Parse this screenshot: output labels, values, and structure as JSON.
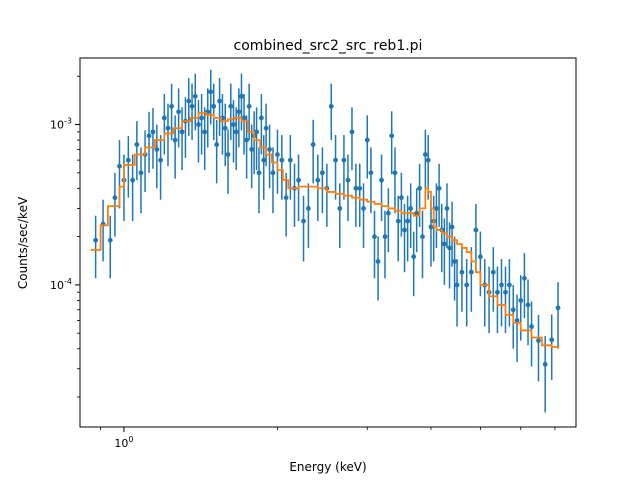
{
  "chart_data": {
    "type": "scatter",
    "title": "combined_src2_src_reb1.pi",
    "xlabel": "Energy (keV)",
    "ylabel": "Counts/sec/keV",
    "xscale": "log",
    "yscale": "log",
    "xlim": [
      0.82,
      7.7
    ],
    "ylim": [
      1.3e-05,
      0.0026
    ],
    "x_ticks": [
      {
        "value": 1,
        "label": "10^0"
      }
    ],
    "y_ticks": [
      {
        "value": 0.001,
        "label": "10^-3"
      },
      {
        "value": 0.0001,
        "label": "10^-4"
      }
    ],
    "grid": false,
    "colors": {
      "data": "#1f77b4",
      "model": "#ff7f0e"
    },
    "data": {
      "name": "",
      "x": [
        0.88,
        0.91,
        0.94,
        0.96,
        0.98,
        1.0,
        1.02,
        1.04,
        1.06,
        1.08,
        1.1,
        1.12,
        1.14,
        1.16,
        1.18,
        1.2,
        1.22,
        1.24,
        1.26,
        1.28,
        1.3,
        1.32,
        1.34,
        1.36,
        1.38,
        1.4,
        1.42,
        1.44,
        1.46,
        1.48,
        1.5,
        1.52,
        1.54,
        1.56,
        1.58,
        1.6,
        1.62,
        1.64,
        1.66,
        1.68,
        1.7,
        1.72,
        1.74,
        1.76,
        1.78,
        1.8,
        1.82,
        1.84,
        1.86,
        1.88,
        1.9,
        1.93,
        1.96,
        2.0,
        2.04,
        2.08,
        2.12,
        2.16,
        2.2,
        2.25,
        2.3,
        2.35,
        2.4,
        2.45,
        2.5,
        2.55,
        2.6,
        2.65,
        2.7,
        2.75,
        2.8,
        2.85,
        2.9,
        2.95,
        3.0,
        3.05,
        3.1,
        3.15,
        3.2,
        3.25,
        3.3,
        3.35,
        3.4,
        3.45,
        3.5,
        3.55,
        3.6,
        3.65,
        3.7,
        3.75,
        3.8,
        3.85,
        3.9,
        3.95,
        4.0,
        4.05,
        4.1,
        4.15,
        4.2,
        4.25,
        4.3,
        4.35,
        4.4,
        4.45,
        4.5,
        4.6,
        4.7,
        4.8,
        4.9,
        5.0,
        5.1,
        5.2,
        5.3,
        5.4,
        5.5,
        5.6,
        5.7,
        5.8,
        5.9,
        6.0,
        6.1,
        6.2,
        6.3,
        6.5,
        6.7,
        6.9,
        7.1
      ],
      "y": [
        0.00019,
        0.00024,
        0.00019,
        0.00035,
        0.00055,
        0.00045,
        0.0006,
        0.00045,
        0.00075,
        0.0005,
        0.00065,
        0.00085,
        0.0009,
        0.0007,
        0.0006,
        0.0011,
        0.00095,
        0.0013,
        0.0008,
        0.0012,
        0.0009,
        0.00105,
        0.0014,
        0.0013,
        0.0015,
        0.001,
        0.0011,
        0.0009,
        0.0012,
        0.0016,
        0.0013,
        0.00075,
        0.0014,
        0.0011,
        0.00095,
        0.00065,
        0.0013,
        0.001,
        0.0009,
        0.0012,
        0.0015,
        0.0011,
        0.0008,
        0.0013,
        0.0007,
        0.00085,
        0.0009,
        0.0005,
        0.0011,
        0.0006,
        0.00095,
        0.0007,
        0.0005,
        0.00065,
        0.0006,
        0.00035,
        0.0006,
        0.0004,
        0.00045,
        0.00025,
        0.0003,
        0.00075,
        0.00045,
        0.0005,
        0.0004,
        0.0013,
        0.0006,
        0.0003,
        0.0006,
        0.00045,
        0.0009,
        0.0004,
        0.0004,
        0.0003,
        0.0008,
        0.0005,
        0.0002,
        0.00014,
        0.00045,
        0.0002,
        0.00028,
        0.00085,
        0.0005,
        0.00025,
        0.00035,
        0.00022,
        0.00025,
        0.0003,
        0.00015,
        0.00028,
        0.0004,
        0.0002,
        0.00065,
        0.0006,
        0.00023,
        0.00025,
        0.0003,
        0.0004,
        0.00022,
        0.00018,
        0.0003,
        0.00017,
        0.00023,
        0.00014,
        0.0001,
        0.00012,
        0.0001,
        0.00012,
        0.00022,
        0.00015,
        0.0001,
        9e-05,
        0.00012,
        9e-05,
        0.0001,
        9e-05,
        0.0001,
        7e-05,
        6e-05,
        8e-05,
        0.00011,
        7.5e-05,
        5.5e-05,
        4.5e-05,
        3.2e-05,
        4.55e-05,
        7.2e-05
      ],
      "err_lo": [
        8e-05,
        0.0001,
        8e-05,
        0.00015,
        0.00025,
        0.0002,
        0.00025,
        0.0002,
        0.0003,
        0.00022,
        0.00027,
        0.00035,
        0.00037,
        0.0003,
        0.00026,
        0.00045,
        0.0004,
        0.0005,
        0.00034,
        0.00048,
        0.00038,
        0.00043,
        0.00055,
        0.0005,
        0.00058,
        0.00042,
        0.00045,
        0.00038,
        0.00048,
        0.0006,
        0.0005,
        0.00032,
        0.00055,
        0.00045,
        0.0004,
        0.00028,
        0.0005,
        0.00042,
        0.00038,
        0.00048,
        0.00058,
        0.00045,
        0.00034,
        0.0005,
        0.0003,
        0.00036,
        0.00038,
        0.00022,
        0.00045,
        0.00026,
        0.0004,
        0.0003,
        0.00022,
        0.00028,
        0.00026,
        0.00015,
        0.00026,
        0.00017,
        0.0002,
        0.00011,
        0.00013,
        0.00032,
        0.0002,
        0.00022,
        0.00017,
        0.0005,
        0.00026,
        0.00013,
        0.00026,
        0.0002,
        0.00038,
        0.00017,
        0.00017,
        0.00013,
        0.00034,
        0.00022,
        9e-05,
        6e-05,
        0.0002,
        9e-05,
        0.00012,
        0.00036,
        0.00022,
        0.00011,
        0.00015,
        0.0001,
        0.00011,
        0.00013,
        6.5e-05,
        0.00012,
        0.00017,
        9e-05,
        0.00028,
        0.00026,
        0.0001,
        0.00011,
        0.00013,
        0.00017,
        0.0001,
        8e-05,
        0.00013,
        7.5e-05,
        0.0001,
        6e-05,
        4.5e-05,
        5.2e-05,
        4.5e-05,
        5.2e-05,
        0.0001,
        6.5e-05,
        4.5e-05,
        4e-05,
        5.2e-05,
        4e-05,
        4.5e-05,
        4e-05,
        4.5e-05,
        3e-05,
        2.7e-05,
        3.5e-05,
        4.8e-05,
        3.3e-05,
        2.4e-05,
        2e-05,
        1.6e-05,
        2e-05,
        3.2e-05
      ],
      "err_hi": [
        8e-05,
        0.0001,
        8e-05,
        0.00015,
        0.00025,
        0.0002,
        0.00025,
        0.0002,
        0.0003,
        0.00022,
        0.00027,
        0.00035,
        0.00037,
        0.0003,
        0.00026,
        0.00045,
        0.0004,
        0.0005,
        0.00034,
        0.00048,
        0.00038,
        0.00043,
        0.00055,
        0.0005,
        0.00058,
        0.00042,
        0.00045,
        0.00038,
        0.00048,
        0.0006,
        0.0005,
        0.00032,
        0.00055,
        0.00045,
        0.0004,
        0.00028,
        0.0005,
        0.00042,
        0.00038,
        0.00048,
        0.00058,
        0.00045,
        0.00034,
        0.0005,
        0.0003,
        0.00036,
        0.00038,
        0.00022,
        0.00045,
        0.00026,
        0.0004,
        0.0003,
        0.00022,
        0.00028,
        0.00026,
        0.00015,
        0.00026,
        0.00017,
        0.0002,
        0.00011,
        0.00013,
        0.00032,
        0.0002,
        0.00022,
        0.00017,
        0.0005,
        0.00026,
        0.00013,
        0.00026,
        0.0002,
        0.00038,
        0.00017,
        0.00017,
        0.00013,
        0.00034,
        0.00022,
        9e-05,
        6e-05,
        0.0002,
        9e-05,
        0.00012,
        0.00036,
        0.00022,
        0.00011,
        0.00015,
        0.0001,
        0.00011,
        0.00013,
        6.5e-05,
        0.00012,
        0.00017,
        9e-05,
        0.00028,
        0.00026,
        0.0001,
        0.00011,
        0.00013,
        0.00017,
        0.0001,
        8e-05,
        0.00013,
        7.5e-05,
        0.0001,
        6e-05,
        4.5e-05,
        5.2e-05,
        4.5e-05,
        5.2e-05,
        0.0001,
        6.5e-05,
        4.5e-05,
        4e-05,
        5.2e-05,
        4e-05,
        4.5e-05,
        4e-05,
        4.5e-05,
        3e-05,
        2.7e-05,
        3.5e-05,
        4.8e-05,
        3.3e-05,
        2.4e-05,
        2e-05,
        1.6e-05,
        2e-05,
        3.2e-05
      ]
    },
    "model": {
      "name": "",
      "type": "step",
      "x": [
        0.86,
        0.9,
        0.93,
        0.96,
        0.98,
        1.0,
        1.05,
        1.1,
        1.15,
        1.2,
        1.25,
        1.3,
        1.35,
        1.4,
        1.45,
        1.5,
        1.55,
        1.6,
        1.65,
        1.7,
        1.75,
        1.8,
        1.85,
        1.9,
        1.95,
        2.0,
        2.05,
        2.1,
        2.15,
        2.2,
        2.3,
        2.4,
        2.5,
        2.6,
        2.7,
        2.8,
        2.9,
        3.0,
        3.1,
        3.2,
        3.3,
        3.4,
        3.5,
        3.6,
        3.7,
        3.8,
        3.9,
        3.95,
        4.0,
        4.05,
        4.1,
        4.2,
        4.3,
        4.4,
        4.5,
        4.6,
        4.7,
        4.8,
        4.9,
        5.0,
        5.2,
        5.4,
        5.6,
        5.8,
        6.0,
        6.3,
        6.6,
        6.9,
        7.1
      ],
      "y": [
        0.000165,
        0.000235,
        0.00031,
        0.00031,
        0.00041,
        0.00056,
        0.00065,
        0.00072,
        0.0008,
        0.00088,
        0.00095,
        0.00105,
        0.0011,
        0.00118,
        0.00115,
        0.0011,
        0.00105,
        0.00108,
        0.0011,
        0.00105,
        0.0009,
        0.0008,
        0.00072,
        0.00065,
        0.00058,
        0.00052,
        0.00045,
        0.0004,
        0.0004,
        0.00041,
        0.00041,
        0.0004,
        0.00038,
        0.00037,
        0.00036,
        0.00035,
        0.00034,
        0.00033,
        0.00032,
        0.00031,
        0.0003,
        0.00029,
        0.00028,
        0.00028,
        0.00027,
        0.0003,
        0.0004,
        0.00038,
        0.0003,
        0.00023,
        0.00022,
        0.00021,
        0.0002,
        0.00019,
        0.00018,
        0.00017,
        0.00016,
        0.00014,
        0.00012,
        0.0001,
        8.5e-05,
        7.5e-05,
        6.5e-05,
        5.8e-05,
        5.2e-05,
        4.7e-05,
        4.2e-05,
        4.1e-05,
        4e-05
      ]
    }
  }
}
